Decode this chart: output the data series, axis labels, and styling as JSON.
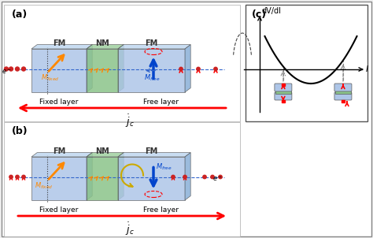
{
  "bg_color": "#f0f0f0",
  "panel_bg": "#ffffff",
  "fm_color": "#aec6e8",
  "nm_color": "#8bc48a",
  "label_a": "(a)",
  "label_b": "(b)",
  "label_c": "(c)",
  "fm_label": "FM",
  "nm_label": "NM",
  "fixed_layer": "Fixed layer",
  "free_layer": "Free layer",
  "jc_label": "$\\dot{j}_c$",
  "mfixed_label": "$M_{fixed}$",
  "mfree_label": "$M_{free}$",
  "electron_label": "$e^-$",
  "dvdi_label": "dV/dI",
  "I_label": "I"
}
